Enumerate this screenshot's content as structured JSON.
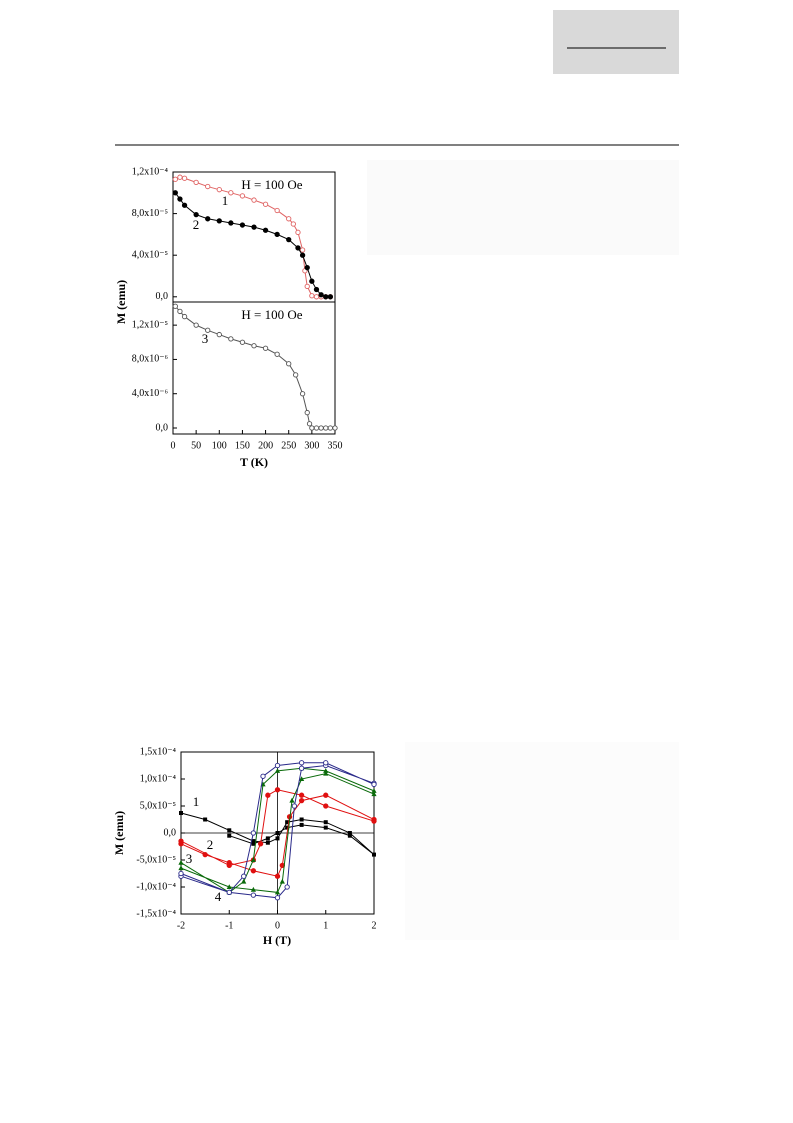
{
  "chart_data": [
    {
      "type": "line",
      "ylabel": "M (emu)",
      "xlim": [
        0,
        350
      ],
      "ylim": [
        -5e-06,
        0.00012
      ],
      "yticks": [
        {
          "value": 0,
          "label": "0,0"
        },
        {
          "value": 4e-05,
          "label": "4,0x10⁻⁵"
        },
        {
          "value": 8e-05,
          "label": "8,0x10⁻⁵"
        },
        {
          "value": 0.00012,
          "label": "1,2x10⁻⁴"
        }
      ],
      "annotations": [
        "H = 100 Oe",
        "1",
        "2"
      ],
      "series": [
        {
          "name": "1",
          "color": "#e06464",
          "marker": "open-circle",
          "x": [
            5,
            15,
            25,
            50,
            75,
            100,
            125,
            150,
            175,
            200,
            225,
            250,
            260,
            270,
            280,
            285,
            290,
            300,
            310,
            320,
            330,
            340
          ],
          "values": [
            0.000113,
            0.000115,
            0.000114,
            0.00011,
            0.000106,
            0.000103,
            0.0001,
            9.7e-05,
            9.3e-05,
            8.9e-05,
            8.3e-05,
            7.5e-05,
            7e-05,
            6.2e-05,
            4.5e-05,
            2.5e-05,
            1e-05,
            1e-06,
            0,
            0,
            0,
            0
          ]
        },
        {
          "name": "2",
          "color": "#000000",
          "marker": "filled-circle",
          "x": [
            5,
            15,
            25,
            50,
            75,
            100,
            125,
            150,
            175,
            200,
            225,
            250,
            270,
            280,
            290,
            300,
            310,
            320,
            330,
            340
          ],
          "values": [
            0.0001,
            9.4e-05,
            8.8e-05,
            7.9e-05,
            7.5e-05,
            7.3e-05,
            7.1e-05,
            6.9e-05,
            6.7e-05,
            6.4e-05,
            6e-05,
            5.5e-05,
            4.7e-05,
            4e-05,
            2.8e-05,
            1.5e-05,
            7e-06,
            2e-06,
            0,
            0
          ]
        }
      ]
    },
    {
      "type": "line",
      "xlabel": "T (K)",
      "xlim": [
        0,
        350
      ],
      "ylim": [
        -7e-07,
        1.47e-05
      ],
      "xticks": [
        0,
        50,
        100,
        150,
        200,
        250,
        300,
        350
      ],
      "yticks": [
        {
          "value": 0,
          "label": "0,0"
        },
        {
          "value": 4e-06,
          "label": "4,0x10⁻⁶"
        },
        {
          "value": 8e-06,
          "label": "8,0x10⁻⁶"
        },
        {
          "value": 1.2e-05,
          "label": "1,2x10⁻⁵"
        }
      ],
      "annotations": [
        "H = 100 Oe",
        "3"
      ],
      "series": [
        {
          "name": "3",
          "color": "#555555",
          "marker": "open-circle",
          "x": [
            5,
            15,
            25,
            50,
            75,
            100,
            125,
            150,
            175,
            200,
            225,
            250,
            265,
            280,
            290,
            295,
            300,
            310,
            320,
            330,
            340,
            350
          ],
          "values": [
            1.42e-05,
            1.36e-05,
            1.3e-05,
            1.2e-05,
            1.14e-05,
            1.09e-05,
            1.04e-05,
            1e-05,
            9.6e-06,
            9.3e-06,
            8.6e-06,
            7.5e-06,
            6.2e-06,
            4e-06,
            1.8e-06,
            5e-07,
            0,
            0,
            0,
            0,
            0,
            0
          ]
        }
      ]
    },
    {
      "type": "line",
      "xlabel": "H (T)",
      "ylabel": "M (emu)",
      "xlim": [
        -2,
        2
      ],
      "ylim": [
        -0.00015,
        0.00015
      ],
      "zero_lines": true,
      "xticks": [
        -2,
        -1,
        0,
        1,
        2
      ],
      "yticks": [
        {
          "value": 0.00015,
          "label": "1,5x10⁻⁴"
        },
        {
          "value": 0.0001,
          "label": "1,0x10⁻⁴"
        },
        {
          "value": 5e-05,
          "label": "5,0x10⁻⁵"
        },
        {
          "value": 0,
          "label": "0,0"
        },
        {
          "value": -5e-05,
          "label": "-5,0x10⁻⁵"
        },
        {
          "value": -0.0001,
          "label": "-1,0x10⁻⁴"
        },
        {
          "value": -0.00015,
          "label": "-1,5x10⁻⁴"
        }
      ],
      "annotations": [
        "1",
        "2",
        "3",
        "4"
      ],
      "series": [
        {
          "name": "1",
          "color": "#000000",
          "marker": "filled-square",
          "x": [
            -2,
            -1.5,
            -1,
            -0.5,
            -0.2,
            0,
            0.2,
            0.5,
            1,
            1.5,
            2,
            1.5,
            1,
            0.5,
            0.2,
            0,
            -0.2,
            -0.5,
            -1
          ],
          "values": [
            3.7e-05,
            2.5e-05,
            5e-06,
            -1.5e-05,
            -1.8e-05,
            -1e-05,
            2e-05,
            2.5e-05,
            2e-05,
            0,
            -4e-05,
            -5e-06,
            1e-05,
            1.5e-05,
            1e-05,
            0,
            -1e-05,
            -2e-05,
            -5e-06
          ]
        },
        {
          "name": "2",
          "color": "#e01010",
          "marker": "filled-circle",
          "x": [
            -2,
            -1.5,
            -1,
            -0.5,
            0,
            0.1,
            0.25,
            0.5,
            1,
            2,
            2,
            1,
            0.5,
            0,
            -0.2,
            -0.35,
            -0.5,
            -1,
            -2
          ],
          "values": [
            -2e-05,
            -4e-05,
            -5.5e-05,
            -7e-05,
            -8e-05,
            -6e-05,
            3e-05,
            6e-05,
            7e-05,
            2.5e-05,
            2.2e-05,
            5e-05,
            7e-05,
            8e-05,
            7e-05,
            -2e-05,
            -5e-05,
            -6e-05,
            -1.5e-05
          ]
        },
        {
          "name": "3",
          "color": "#0a6a0a",
          "marker": "filled-triangle",
          "x": [
            -2,
            -1,
            -0.5,
            0,
            0.1,
            0.3,
            0.5,
            1,
            2,
            2,
            1,
            0.5,
            0,
            -0.3,
            -0.5,
            -0.7,
            -1,
            -2
          ],
          "values": [
            -6.5e-05,
            -0.0001,
            -0.000105,
            -0.00011,
            -9e-05,
            6e-05,
            0.0001,
            0.00011,
            7.2e-05,
            7.8e-05,
            0.000115,
            0.00012,
            0.000115,
            9e-05,
            -5e-05,
            -9e-05,
            -0.00011,
            -5.5e-05
          ]
        },
        {
          "name": "4",
          "color": "#2a2a8a",
          "marker": "open-circle",
          "x": [
            -2,
            -1,
            -0.5,
            0,
            0.2,
            0.35,
            0.5,
            1,
            2,
            2,
            1,
            0.5,
            0,
            -0.3,
            -0.5,
            -0.7,
            -1,
            -2
          ],
          "values": [
            -8e-05,
            -0.00011,
            -0.000115,
            -0.00012,
            -0.0001,
            5e-05,
            0.00012,
            0.000125,
            9.2e-05,
            9e-05,
            0.00013,
            0.00013,
            0.000125,
            0.000105,
            0,
            -8e-05,
            -0.00011,
            -7.5e-05
          ]
        }
      ]
    }
  ]
}
